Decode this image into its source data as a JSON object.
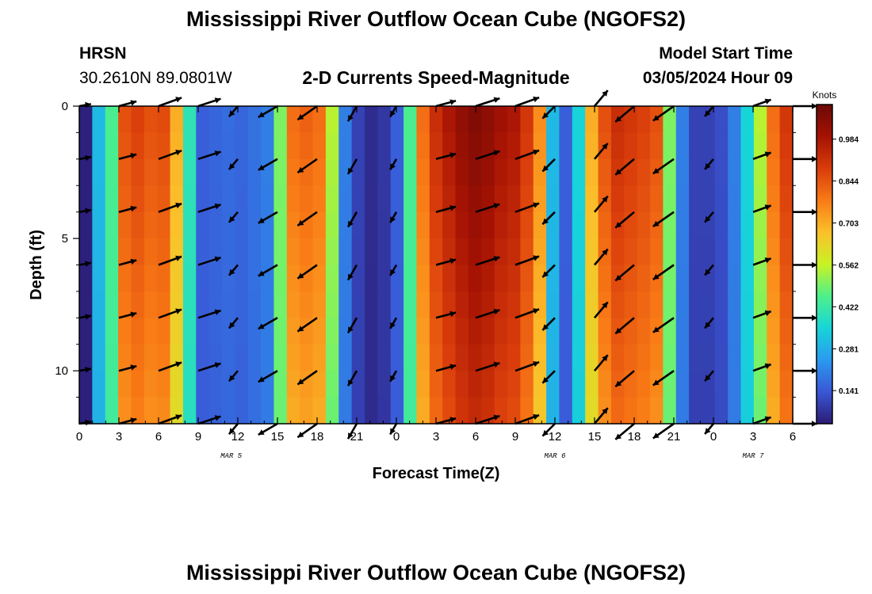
{
  "page": {
    "title_top": "Mississippi River Outflow Ocean Cube (NGOFS2)",
    "title_bottom": "Mississippi River Outflow Ocean Cube (NGOFS2)",
    "station_name": "HRSN",
    "station_coords": "30.2610N  89.0801W",
    "plot_subtitle": "2-D Currents Speed-Magnitude",
    "model_start_label": "Model Start Time",
    "model_start_value": "03/05/2024 Hour 09"
  },
  "chart_data": {
    "type": "heatmap",
    "title": "2-D Currents Speed-Magnitude",
    "xlabel": "Forecast Time(Z)",
    "ylabel": "Depth (ft)",
    "x_range_hours": [
      0,
      54
    ],
    "y_range_ft": [
      0,
      12
    ],
    "x_tick_labels": [
      "0",
      "3",
      "6",
      "9",
      "12",
      "15",
      "18",
      "21",
      "0",
      "3",
      "6",
      "9",
      "12",
      "15",
      "18",
      "21",
      "0",
      "3",
      "6"
    ],
    "y_tick_labels": [
      "0",
      "5",
      "10"
    ],
    "y_tick_values": [
      0,
      5,
      10
    ],
    "date_labels": [
      {
        "text": "MAR 5",
        "hour": 11.5
      },
      {
        "text": "MAR 6",
        "hour": 36
      },
      {
        "text": "MAR 7",
        "hour": 51
      }
    ],
    "colorbar": {
      "unit": "Knots",
      "ticks": [
        0.141,
        0.281,
        0.422,
        0.562,
        0.703,
        0.844,
        0.984
      ],
      "min": 0.03,
      "max": 1.1,
      "colors": [
        "#2b1b74",
        "#3a57d6",
        "#2a9af0",
        "#17d5d8",
        "#4ef08a",
        "#c9f224",
        "#fbc02a",
        "#f97a16",
        "#d93c0b",
        "#a51203",
        "#6b0906"
      ]
    },
    "grid": false,
    "speed_by_hour_knots": [
      0.04,
      0.3,
      0.45,
      0.85,
      0.88,
      0.85,
      0.86,
      0.7,
      0.4,
      0.15,
      0.16,
      0.17,
      0.16,
      0.18,
      0.2,
      0.5,
      0.8,
      0.82,
      0.8,
      0.55,
      0.2,
      0.1,
      0.06,
      0.08,
      0.15,
      0.45,
      0.8,
      0.92,
      0.98,
      1.03,
      1.06,
      1.04,
      1.0,
      0.98,
      0.9,
      0.75,
      0.3,
      0.15,
      0.35,
      0.7,
      0.85,
      0.92,
      0.9,
      0.88,
      0.85,
      0.5,
      0.2,
      0.1,
      0.1,
      0.12,
      0.2,
      0.35,
      0.55,
      0.8,
      0.9
    ],
    "vector_hours": [
      0,
      3,
      6,
      9,
      12,
      15,
      18,
      21,
      24,
      27,
      30,
      33,
      36,
      39,
      42,
      45,
      48,
      51,
      54
    ],
    "vector_depths_ft": [
      0,
      2,
      4,
      6,
      8,
      10,
      12
    ],
    "vector_direction_deg_to": [
      80,
      75,
      70,
      72,
      220,
      240,
      235,
      210,
      210,
      75,
      72,
      70,
      225,
      40,
      230,
      235,
      220,
      70,
      90
    ],
    "vector_speed_knots": [
      0.05,
      0.45,
      0.85,
      0.8,
      0.16,
      0.7,
      0.8,
      0.4,
      0.08,
      0.6,
      1.0,
      0.9,
      0.4,
      0.6,
      0.85,
      0.9,
      0.15,
      0.5,
      0.85
    ]
  }
}
